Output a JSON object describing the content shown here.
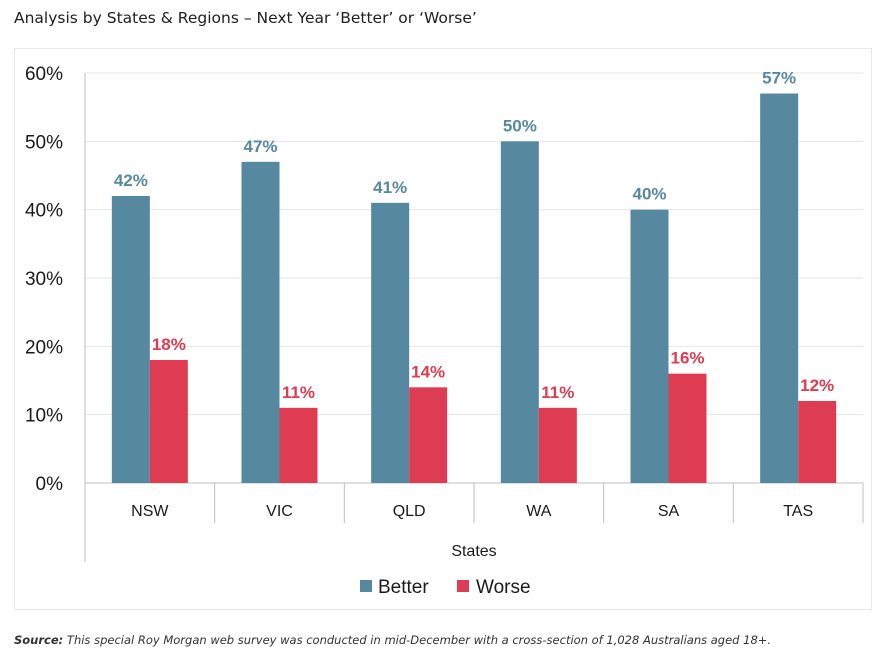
{
  "title": "Analysis by States & Regions – Next Year ‘Better’ or ‘Worse’",
  "source": {
    "label": "Source:",
    "text": "This special Roy Morgan web survey was conducted in mid-December with a cross-section of 1,028 Australians aged 18+."
  },
  "colors": {
    "better": "#5689a0",
    "worse": "#dd3c52",
    "grid": "#e6e6e6",
    "axis": "#bfbfbf"
  },
  "chart_data": {
    "type": "bar",
    "title": "Analysis by States & Regions – Next Year ‘Better’ or ‘Worse’",
    "xlabel": "States",
    "ylabel": "",
    "ylim": [
      0,
      60
    ],
    "yticks": [
      0,
      10,
      20,
      30,
      40,
      50,
      60
    ],
    "ytick_labels": [
      "0%",
      "10%",
      "20%",
      "30%",
      "40%",
      "50%",
      "60%"
    ],
    "categories": [
      "NSW",
      "VIC",
      "QLD",
      "WA",
      "SA",
      "TAS"
    ],
    "series": [
      {
        "name": "Better",
        "values": [
          42,
          47,
          41,
          50,
          40,
          57
        ],
        "labels": [
          "42%",
          "47%",
          "41%",
          "50%",
          "40%",
          "57%"
        ]
      },
      {
        "name": "Worse",
        "values": [
          18,
          11,
          14,
          11,
          16,
          12
        ],
        "labels": [
          "18%",
          "11%",
          "14%",
          "11%",
          "16%",
          "12%"
        ]
      }
    ],
    "legend": "bottom-center",
    "grid": true
  }
}
